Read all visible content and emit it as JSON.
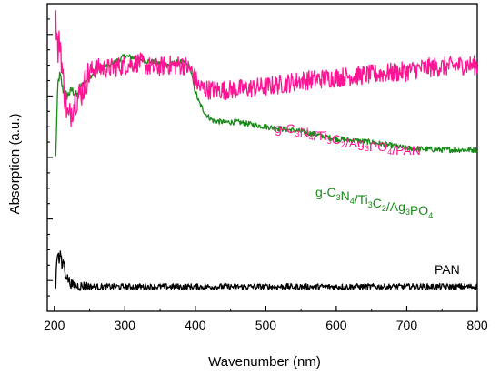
{
  "chart_data": {
    "type": "line",
    "xlabel": "Wavenumber (nm)",
    "ylabel": "Absorption (a.u.)",
    "xlim": [
      190,
      800
    ],
    "ylim": [
      0,
      10
    ],
    "xticks": [
      200,
      300,
      400,
      500,
      600,
      700,
      800
    ],
    "yticks_labeled": false,
    "grid": false,
    "legend": "none (inline series labels)",
    "series": [
      {
        "name": "g-C3N4/Ti3C2/Ag3PO4/PAN",
        "label_parts": [
          [
            "g-C",
            ""
          ],
          [
            "3",
            "sub"
          ],
          [
            "N",
            ""
          ],
          [
            "4",
            "sub"
          ],
          [
            "/Ti",
            ""
          ],
          [
            "3",
            "sub"
          ],
          [
            "C",
            ""
          ],
          [
            "2",
            "sub"
          ],
          [
            "/Ag",
            ""
          ],
          [
            "3",
            "sub"
          ],
          [
            "PO",
            ""
          ],
          [
            "4",
            "sub"
          ],
          [
            "/PAN",
            ""
          ]
        ],
        "color": "#ff1493",
        "noise": 0.32,
        "x": [
          202,
          205,
          208,
          212,
          216,
          220,
          225,
          230,
          235,
          240,
          250,
          260,
          280,
          300,
          320,
          340,
          360,
          375,
          385,
          395,
          405,
          420,
          450,
          500,
          550,
          600,
          650,
          700,
          720,
          750,
          780,
          800
        ],
        "values": [
          9.6,
          8.4,
          8.9,
          7.6,
          6.8,
          6.2,
          6.6,
          6.9,
          7.0,
          7.2,
          7.8,
          7.9,
          7.9,
          8.0,
          8.1,
          7.9,
          8.0,
          8.0,
          8.0,
          7.8,
          7.3,
          7.2,
          7.2,
          7.3,
          7.5,
          7.6,
          7.7,
          7.8,
          7.9,
          7.95,
          8.0,
          8.0
        ]
      },
      {
        "name": "g-C3N4/Ti3C2/Ag3PO4",
        "label_parts": [
          [
            "g-C",
            ""
          ],
          [
            "3",
            "sub"
          ],
          [
            "N",
            ""
          ],
          [
            "4",
            "sub"
          ],
          [
            "/Ti",
            ""
          ],
          [
            "3",
            "sub"
          ],
          [
            "C",
            ""
          ],
          [
            "2",
            "sub"
          ],
          [
            "/Ag",
            ""
          ],
          [
            "3",
            "sub"
          ],
          [
            "PO",
            ""
          ],
          [
            "4",
            "sub"
          ]
        ],
        "color": "#1a8a1a",
        "noise": 0.09,
        "x": [
          202,
          205,
          208,
          212,
          218,
          225,
          232,
          240,
          250,
          260,
          280,
          300,
          320,
          340,
          360,
          375,
          385,
          393,
          398,
          405,
          415,
          425,
          440,
          460,
          500,
          550,
          600,
          650,
          700,
          750,
          800
        ],
        "values": [
          5.0,
          7.4,
          7.7,
          7.2,
          7.0,
          7.2,
          7.0,
          7.4,
          7.6,
          7.9,
          8.0,
          8.3,
          8.2,
          8.1,
          8.0,
          8.1,
          8.1,
          7.9,
          7.3,
          6.8,
          6.4,
          6.2,
          6.15,
          6.15,
          6.0,
          5.85,
          5.6,
          5.5,
          5.3,
          5.25,
          5.25
        ]
      },
      {
        "name": "PAN",
        "label_parts": [
          [
            "PAN",
            ""
          ]
        ],
        "color": "#000000",
        "noise": 0.1,
        "x": [
          202,
          203,
          205,
          207,
          209,
          211,
          213,
          215,
          218,
          222,
          226,
          232,
          240,
          260,
          300,
          400,
          500,
          600,
          700,
          800
        ],
        "values": [
          0.7,
          1.6,
          2.0,
          1.6,
          1.9,
          1.4,
          1.7,
          1.3,
          1.1,
          0.95,
          0.85,
          0.82,
          0.82,
          0.8,
          0.8,
          0.8,
          0.8,
          0.8,
          0.8,
          0.8
        ]
      }
    ]
  }
}
